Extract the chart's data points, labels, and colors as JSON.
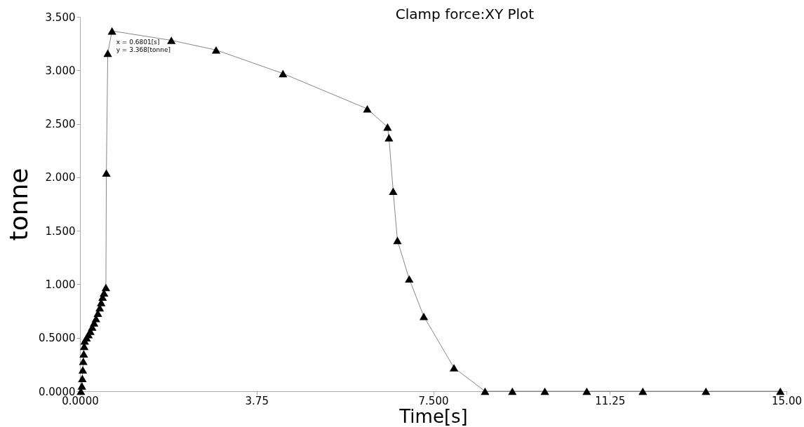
{
  "chart_data": {
    "type": "line",
    "title": "Clamp force:XY Plot",
    "xlabel": "Time[s]",
    "ylabel": "tonne",
    "x": [
      0.02,
      0.04,
      0.05,
      0.06,
      0.07,
      0.08,
      0.09,
      0.1,
      0.14,
      0.18,
      0.22,
      0.26,
      0.3,
      0.34,
      0.38,
      0.42,
      0.45,
      0.48,
      0.51,
      0.53,
      0.55,
      0.56,
      0.59,
      0.6801,
      1.94,
      2.89,
      4.31,
      6.1,
      6.53,
      6.56,
      6.65,
      6.74,
      6.99,
      7.3,
      7.94,
      8.6,
      9.18,
      9.87,
      10.76,
      11.95,
      13.29,
      14.87
    ],
    "series": [
      {
        "color": "#000000",
        "values": [
          0,
          0.05,
          0.12,
          0.2,
          0.28,
          0.35,
          0.42,
          0.47,
          0.5,
          0.53,
          0.56,
          0.6,
          0.64,
          0.68,
          0.73,
          0.78,
          0.83,
          0.88,
          0.92,
          null,
          0.97,
          2.04,
          3.16,
          3.368,
          3.28,
          3.19,
          2.97,
          2.64,
          2.47,
          2.37,
          1.87,
          1.41,
          1.05,
          0.7,
          0.22,
          0,
          0,
          0,
          0,
          0,
          0,
          0
        ]
      }
    ],
    "marker": "triangle",
    "grid": false,
    "xlim": [
      0,
      15
    ],
    "xticks": [
      {
        "value": 0,
        "label": "0.0000"
      },
      3.75,
      {
        "value": 7.5,
        "label": "7.500"
      },
      11.25,
      {
        "value": 15,
        "label": "15.00"
      }
    ],
    "ylim": [
      0,
      3.5
    ],
    "yticks": [
      {
        "value": 0,
        "label": "0.0000"
      },
      {
        "value": 0.5,
        "label": "0.5000"
      },
      {
        "value": 1,
        "label": "1.000"
      },
      {
        "value": 1.5,
        "label": "1.500"
      },
      {
        "value": 2,
        "label": "2.000"
      },
      {
        "value": 2.5,
        "label": "2.500"
      },
      {
        "value": 3,
        "label": "3.000"
      },
      {
        "value": 3.5,
        "label": "3.500"
      }
    ],
    "annotations": [
      {
        "text": "x = 0.6801[s]\ny = 3.368[tonne]",
        "x": 0.6801,
        "y": 3.368
      }
    ]
  }
}
